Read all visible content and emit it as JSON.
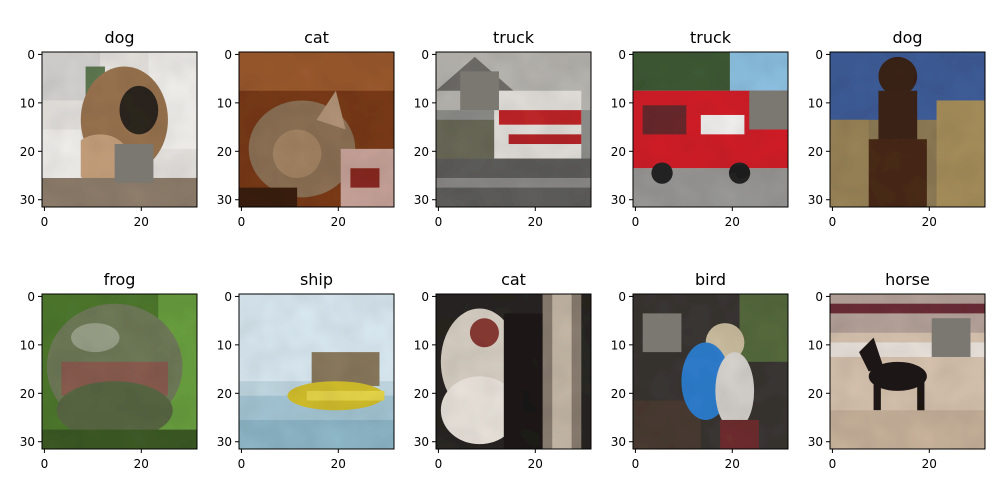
{
  "panels": [
    {
      "title": "dog",
      "x_ticks": [
        "0",
        "20"
      ],
      "y_ticks": [
        "0",
        "10",
        "20",
        "30"
      ],
      "scene": "white-background-dog-closeup",
      "gray_patch": {
        "x0": 15,
        "y0": 19,
        "x1": 23,
        "y1": 27
      }
    },
    {
      "title": "cat",
      "x_ticks": [
        "0",
        "20"
      ],
      "y_ticks": [
        "0",
        "10",
        "20",
        "30"
      ],
      "scene": "tabby-cat-on-brown-blanket",
      "gray_patch": null
    },
    {
      "title": "truck",
      "x_ticks": [
        "0",
        "20"
      ],
      "y_ticks": [
        "0",
        "10",
        "20",
        "30"
      ],
      "scene": "red-white-fire-truck-gray-road",
      "gray_patch": {
        "x0": 5,
        "y0": 4,
        "x1": 13,
        "y1": 12
      }
    },
    {
      "title": "truck",
      "x_ticks": [
        "0",
        "20"
      ],
      "y_ticks": [
        "0",
        "10",
        "20",
        "30"
      ],
      "scene": "red-fire-truck-trees-sky",
      "gray_patch": {
        "x0": 24,
        "y0": 8,
        "x1": 32,
        "y1": 16
      }
    },
    {
      "title": "dog",
      "x_ticks": [
        "0",
        "20"
      ],
      "y_ticks": [
        "0",
        "10",
        "20",
        "30"
      ],
      "scene": "dark-brown-dog-blue-tan-background",
      "gray_patch": null
    },
    {
      "title": "frog",
      "x_ticks": [
        "0",
        "20"
      ],
      "y_ticks": [
        "0",
        "10",
        "20",
        "30"
      ],
      "scene": "green-frog-on-leaves",
      "gray_patch": null
    },
    {
      "title": "ship",
      "x_ticks": [
        "0",
        "20"
      ],
      "y_ticks": [
        "0",
        "10",
        "20",
        "30"
      ],
      "scene": "yellow-boat-light-blue-water",
      "gray_patch": null
    },
    {
      "title": "cat",
      "x_ticks": [
        "0",
        "20"
      ],
      "y_ticks": [
        "0",
        "10",
        "20",
        "30"
      ],
      "scene": "white-cat-face-dark-background",
      "gray_patch": null
    },
    {
      "title": "bird",
      "x_ticks": [
        "0",
        "20"
      ],
      "y_ticks": [
        "0",
        "10",
        "20",
        "30"
      ],
      "scene": "blue-white-bird-dark-background",
      "gray_patch": {
        "x0": 2,
        "y0": 4,
        "x1": 10,
        "y1": 12
      }
    },
    {
      "title": "horse",
      "x_ticks": [
        "0",
        "20"
      ],
      "y_ticks": [
        "0",
        "10",
        "20",
        "30"
      ],
      "scene": "dark-horse-sandy-arena",
      "gray_patch": {
        "x0": 21,
        "y0": 5,
        "x1": 29,
        "y1": 13
      }
    }
  ],
  "colors": {
    "occlusion_patch": "#7a7871",
    "axis": "#000000",
    "background": "#ffffff"
  }
}
